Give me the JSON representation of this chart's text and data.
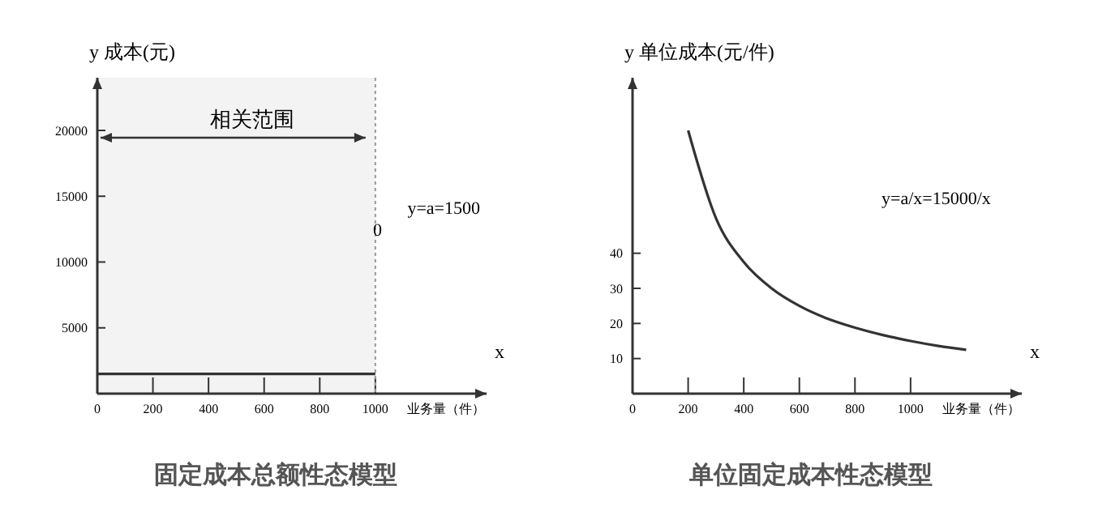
{
  "chart_data": [
    {
      "type": "line",
      "title": "固定成本总额性态模型",
      "xlabel": "业务量（件）",
      "ylabel": "y  成本(元)",
      "xlim": [
        0,
        1400
      ],
      "xticks": [
        0,
        200,
        400,
        600,
        800,
        1000
      ],
      "ylim": [
        0,
        24000
      ],
      "yticks": [
        5000,
        10000,
        15000,
        20000
      ],
      "series": [
        {
          "color": "#333333",
          "x": [
            0,
            1000
          ],
          "values": [
            1500,
            1500
          ]
        }
      ],
      "ref_lines": [
        {
          "axis": "x",
          "value": 1000,
          "line_style": "dotted",
          "color": "#999999"
        }
      ],
      "bands": [
        {
          "axis": "x",
          "from": 0,
          "to": 1000,
          "label": "相关范围"
        }
      ],
      "annotations": [
        "0",
        "y=a=1500",
        "x"
      ]
    },
    {
      "type": "line",
      "title": "单位固定成本性态模型",
      "xlabel": "业务量（件）",
      "ylabel": "y   单位成本(元/件)",
      "xlim": [
        0,
        1400
      ],
      "xticks": [
        0,
        200,
        400,
        600,
        800,
        1000
      ],
      "ylim": [
        0,
        90
      ],
      "yticks": [
        10,
        20,
        30,
        40
      ],
      "series": [
        {
          "color": "#333333",
          "x": [
            200,
            300,
            400,
            500,
            600,
            700,
            800,
            900,
            1000,
            1100,
            1200
          ],
          "values": [
            75,
            50,
            37.5,
            30,
            25,
            21.4,
            18.8,
            16.7,
            15,
            13.6,
            12.5
          ]
        }
      ],
      "annotations": [
        "y=a/x=15000/x",
        "x"
      ]
    }
  ]
}
